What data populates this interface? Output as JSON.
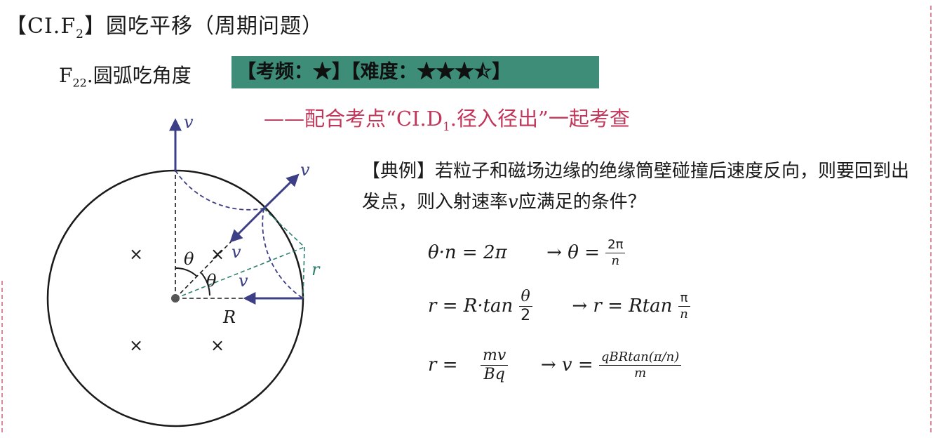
{
  "header": {
    "title_prefix": "【CI.F",
    "title_sub": "2",
    "title_suffix": "】圆吃平移（周期问题）"
  },
  "topic": {
    "prefix": "F",
    "sub": "22",
    "suffix": ".圆弧吃角度",
    "badge": "【考频：★】【难度：★★★⯪】"
  },
  "note": {
    "prefix": "——配合考点“CI.D",
    "sub": "1",
    "suffix": ".径入径出”一起考查"
  },
  "example": {
    "text_before_v": "【典例】若粒子和磁场边缘的绝缘筒壁碰撞后速度反向，则要回到出发点，则入射速率",
    "v": "v",
    "text_after_v": "应满足的条件？"
  },
  "diagram": {
    "label_v_top": "v",
    "label_v_diag": "v",
    "label_v_inner": "v",
    "label_v_lower": "v",
    "label_theta1": "θ",
    "label_theta2": "θ",
    "label_r": "r",
    "label_R": "R",
    "cross": "×",
    "colors": {
      "velocity": "#3c3f85",
      "dashed_teal": "#2f7f6e",
      "dashed_blue": "#3c3f85"
    }
  },
  "equations": {
    "eq1_left": "θ·n = 2π",
    "eq1_arrow": "→ θ =",
    "eq1_num": "2π",
    "eq1_den": "n",
    "eq2_left": "r = R·tan",
    "eq2_num": "θ",
    "eq2_den": "2",
    "eq2_arrow": "→ r = Rtan",
    "eq2b_num": "π",
    "eq2b_den": "n",
    "eq3_left": "r =",
    "eq3_num": "mv",
    "eq3_den": "Bq",
    "eq3_arrow": "→ v =",
    "eq3b_num": "qBRtan(π/n)",
    "eq3b_den": "m"
  }
}
